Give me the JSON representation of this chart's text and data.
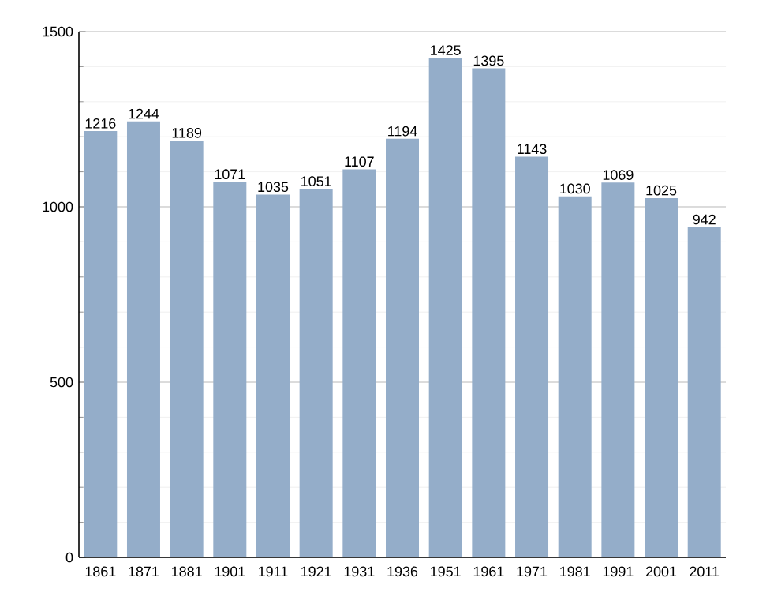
{
  "chart_data": {
    "type": "bar",
    "categories": [
      "1861",
      "1871",
      "1881",
      "1901",
      "1911",
      "1921",
      "1931",
      "1936",
      "1951",
      "1961",
      "1971",
      "1981",
      "1991",
      "2001",
      "2011"
    ],
    "values": [
      1216,
      1244,
      1189,
      1071,
      1035,
      1051,
      1107,
      1194,
      1425,
      1395,
      1143,
      1030,
      1069,
      1025,
      942
    ],
    "color": "#94adc9",
    "ylim": [
      0,
      1500
    ],
    "yticks": [
      0,
      500,
      1000,
      1500
    ],
    "grid": "y",
    "data_labels": true
  }
}
